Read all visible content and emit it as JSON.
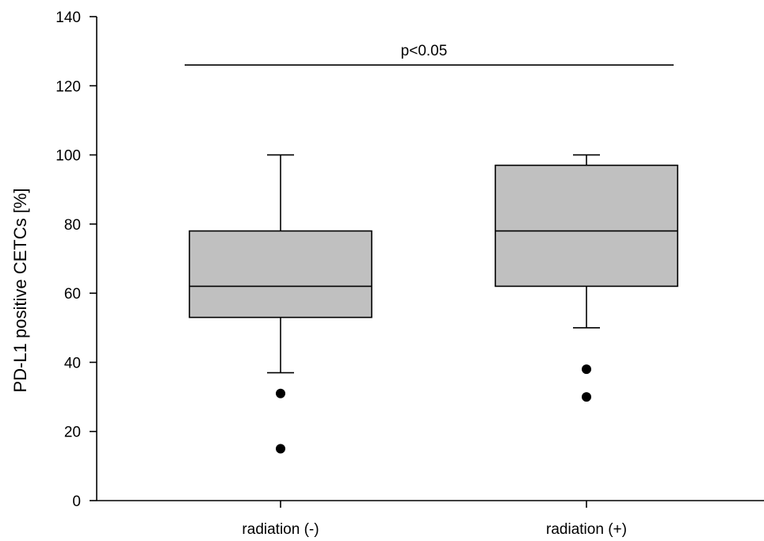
{
  "chart_data": {
    "type": "box",
    "title": "",
    "xlabel": "",
    "ylabel": "PD-L1 positive CETCs [%]",
    "ylim": [
      0,
      140
    ],
    "yticks": [
      0,
      20,
      40,
      60,
      80,
      100,
      120,
      140
    ],
    "grid": false,
    "categories": [
      "radiation (-)",
      "radiation (+)"
    ],
    "boxes": [
      {
        "category": "radiation (-)",
        "whisker_low": 37,
        "q1": 53,
        "median": 62,
        "q3": 78,
        "whisker_high": 100,
        "outliers": [
          31,
          15
        ]
      },
      {
        "category": "radiation (+)",
        "whisker_low": 50,
        "q1": 62,
        "median": 78,
        "q3": 97,
        "whisker_high": 100,
        "outliers": [
          38,
          30
        ]
      }
    ],
    "box_fill": "#c0c0c0",
    "annotation": {
      "text": "p<0.05",
      "y": 126
    }
  }
}
